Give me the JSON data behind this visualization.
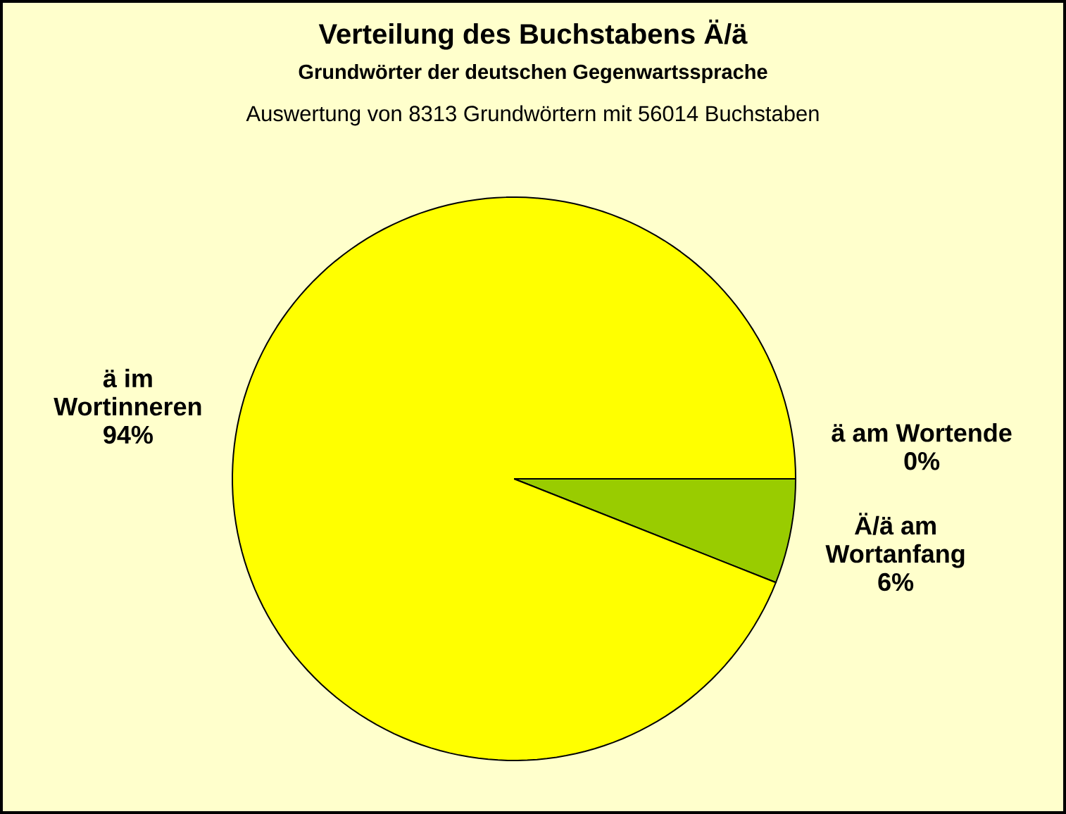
{
  "chart_data": {
    "type": "pie",
    "title": "Verteilung des Buchstabens Ä/ä",
    "subtitle": "Grundwörter der deutschen Gegenwartssprache",
    "annotations": [
      "Auswertung von 8313 Grundwörtern mit 56014 Buchstaben"
    ],
    "categories": [
      "Ä/ä am Wortanfang",
      "ä im Wortinneren",
      "ä am Wortende"
    ],
    "values": [
      6,
      94,
      0
    ],
    "colors": [
      "#99cc00",
      "#ffff00",
      "#993366"
    ],
    "value_labels": [
      "6%",
      "94%",
      "0%"
    ]
  }
}
